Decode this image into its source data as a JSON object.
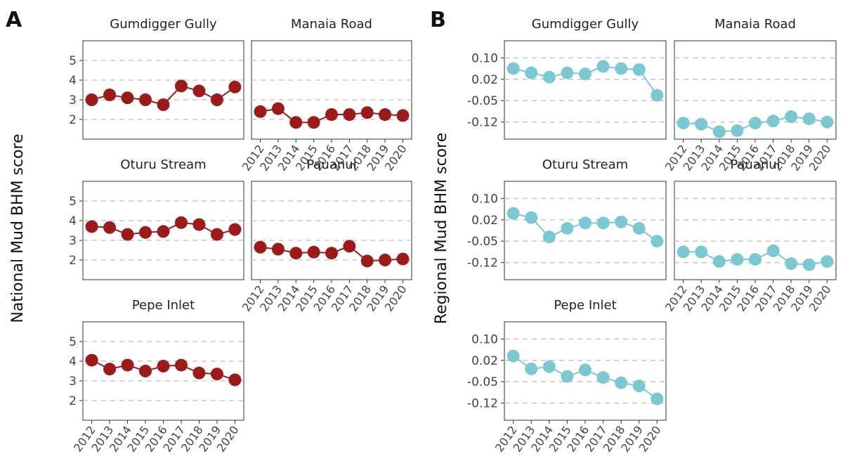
{
  "figure": {
    "panel_labels": [
      "A",
      "B"
    ]
  },
  "chart_data": [
    {
      "type": "line",
      "panel": "A",
      "ylabel": "National Mud BHM score",
      "xlabel": "",
      "x": [
        "2012",
        "2013",
        "2014",
        "2015",
        "2016",
        "2017",
        "2018",
        "2019",
        "2020"
      ],
      "y_ticks": [
        "5",
        "4",
        "3",
        "2"
      ],
      "ylim": [
        1,
        6
      ],
      "grid": "horizontal dashed",
      "color": "#9b1b1b",
      "facets": [
        {
          "title": "Gumdigger Gully",
          "values": [
            3.0,
            3.25,
            3.1,
            3.0,
            2.75,
            3.7,
            3.45,
            3.0,
            3.65
          ]
        },
        {
          "title": "Manaia Road",
          "values": [
            2.4,
            2.55,
            1.85,
            1.85,
            2.25,
            2.25,
            2.35,
            2.25,
            2.2
          ]
        },
        {
          "title": "Oturu Stream",
          "values": [
            3.7,
            3.65,
            3.3,
            3.4,
            3.45,
            3.9,
            3.8,
            3.3,
            3.55
          ]
        },
        {
          "title": "Pauanui",
          "values": [
            2.65,
            2.55,
            2.35,
            2.4,
            2.35,
            2.7,
            1.95,
            2.0,
            2.05
          ]
        },
        {
          "title": "Pepe Inlet",
          "values": [
            4.05,
            3.6,
            3.8,
            3.5,
            3.75,
            3.8,
            3.4,
            3.35,
            3.05
          ]
        }
      ]
    },
    {
      "type": "line",
      "panel": "B",
      "ylabel": "Regional Mud BHM score",
      "xlabel": "",
      "x": [
        "2012",
        "2013",
        "2014",
        "2015",
        "2016",
        "2017",
        "2018",
        "2019",
        "2020"
      ],
      "y_ticks": [
        "0.10",
        "0.02",
        "-0.05",
        "-0.12"
      ],
      "y_tick_positions": [
        3,
        2,
        1,
        0
      ],
      "ylim": [
        -0.8,
        3.8
      ],
      "grid": "horizontal dashed",
      "color": "#7cc8d0",
      "facets": [
        {
          "title": "Gumdigger Gully",
          "values": [
            2.5,
            2.3,
            2.1,
            2.3,
            2.25,
            2.6,
            2.5,
            2.45,
            1.25
          ]
        },
        {
          "title": "Manaia Road",
          "values": [
            -0.05,
            -0.1,
            -0.45,
            -0.4,
            -0.05,
            0.05,
            0.25,
            0.15,
            0.0
          ]
        },
        {
          "title": "Oturu Stream",
          "values": [
            2.3,
            2.1,
            1.2,
            1.6,
            1.85,
            1.85,
            1.9,
            1.6,
            1.0
          ]
        },
        {
          "title": "Pauanui",
          "values": [
            0.5,
            0.5,
            0.05,
            0.15,
            0.15,
            0.55,
            -0.05,
            -0.1,
            0.05
          ]
        },
        {
          "title": "Pepe Inlet",
          "values": [
            2.2,
            1.6,
            1.7,
            1.25,
            1.55,
            1.2,
            0.95,
            0.8,
            0.2
          ]
        }
      ]
    }
  ]
}
